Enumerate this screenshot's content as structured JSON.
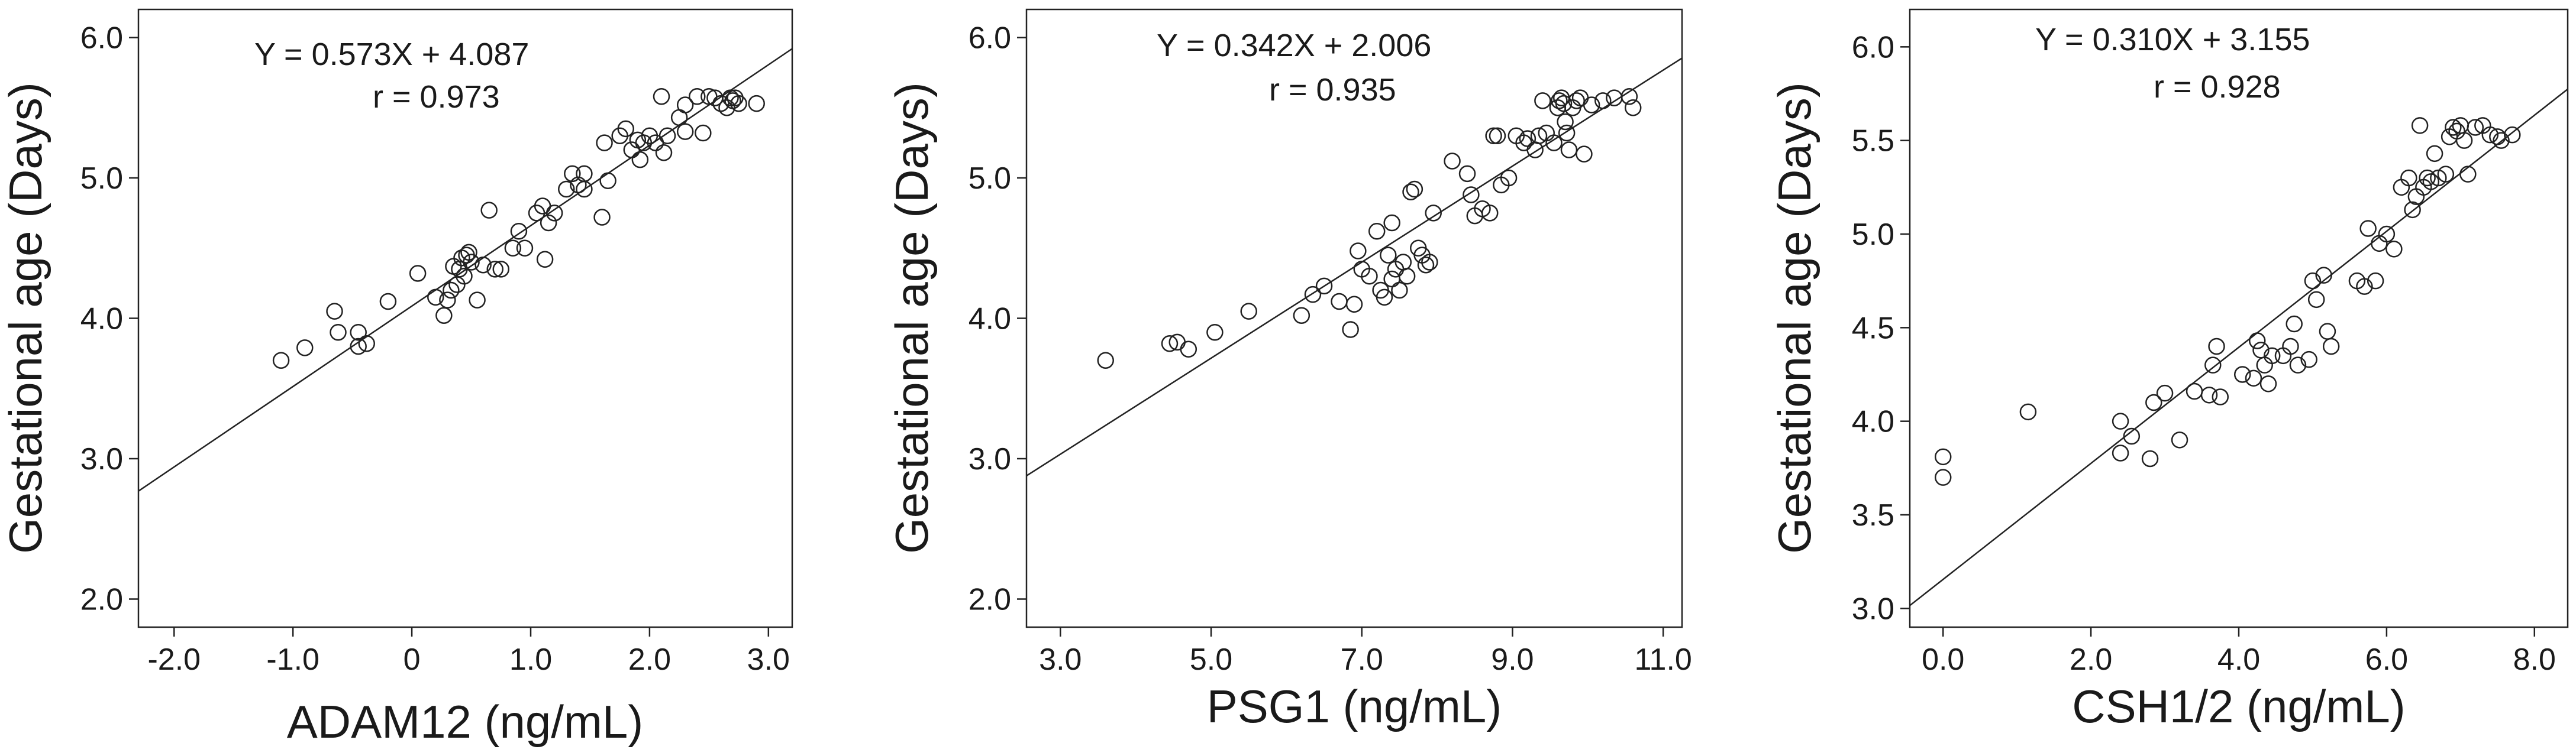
{
  "chart_data": [
    {
      "type": "scatter",
      "xlabel": "ADAM12 (ng/mL)",
      "ylabel": "Gestational age (Days)",
      "xlim": [
        -2.3,
        3.2
      ],
      "ylim": [
        1.8,
        6.2
      ],
      "xticks": [
        -2.0,
        -1.0,
        0,
        1.0,
        2.0,
        3.0
      ],
      "xtick_labels": [
        "-2.0",
        "-1.0",
        "0",
        "1.0",
        "2.0",
        "3.0"
      ],
      "yticks": [
        2.0,
        3.0,
        4.0,
        5.0,
        6.0
      ],
      "ytick_labels": [
        "2.0",
        "3.0",
        "4.0",
        "5.0",
        "6.0"
      ],
      "equation": "Y = 0.573X + 4.087",
      "r_label": "r = 0.973",
      "fit": {
        "slope": 0.573,
        "intercept": 4.087
      },
      "grid": false,
      "points": [
        [
          -1.1,
          3.7
        ],
        [
          -0.9,
          3.79
        ],
        [
          -0.65,
          4.05
        ],
        [
          -0.62,
          3.9
        ],
        [
          -0.45,
          3.9
        ],
        [
          -0.45,
          3.8
        ],
        [
          -0.38,
          3.82
        ],
        [
          -0.2,
          4.12
        ],
        [
          0.05,
          4.32
        ],
        [
          0.2,
          4.15
        ],
        [
          0.27,
          4.02
        ],
        [
          0.3,
          4.13
        ],
        [
          0.33,
          4.2
        ],
        [
          0.35,
          4.37
        ],
        [
          0.38,
          4.24
        ],
        [
          0.4,
          4.35
        ],
        [
          0.42,
          4.43
        ],
        [
          0.44,
          4.3
        ],
        [
          0.46,
          4.45
        ],
        [
          0.48,
          4.47
        ],
        [
          0.5,
          4.4
        ],
        [
          0.55,
          4.13
        ],
        [
          0.6,
          4.38
        ],
        [
          0.65,
          4.77
        ],
        [
          0.7,
          4.35
        ],
        [
          0.75,
          4.35
        ],
        [
          0.85,
          4.5
        ],
        [
          0.9,
          4.62
        ],
        [
          0.95,
          4.5
        ],
        [
          1.05,
          4.75
        ],
        [
          1.1,
          4.8
        ],
        [
          1.12,
          4.42
        ],
        [
          1.15,
          4.68
        ],
        [
          1.2,
          4.75
        ],
        [
          1.3,
          4.92
        ],
        [
          1.35,
          5.03
        ],
        [
          1.4,
          4.95
        ],
        [
          1.45,
          5.03
        ],
        [
          1.45,
          4.92
        ],
        [
          1.6,
          4.72
        ],
        [
          1.62,
          5.25
        ],
        [
          1.65,
          4.98
        ],
        [
          1.75,
          5.3
        ],
        [
          1.8,
          5.35
        ],
        [
          1.85,
          5.2
        ],
        [
          1.9,
          5.27
        ],
        [
          1.92,
          5.13
        ],
        [
          1.95,
          5.25
        ],
        [
          2.0,
          5.3
        ],
        [
          2.05,
          5.25
        ],
        [
          2.1,
          5.58
        ],
        [
          2.12,
          5.18
        ],
        [
          2.15,
          5.3
        ],
        [
          2.25,
          5.43
        ],
        [
          2.3,
          5.33
        ],
        [
          2.3,
          5.52
        ],
        [
          2.4,
          5.58
        ],
        [
          2.45,
          5.32
        ],
        [
          2.5,
          5.58
        ],
        [
          2.55,
          5.57
        ],
        [
          2.6,
          5.53
        ],
        [
          2.65,
          5.5
        ],
        [
          2.68,
          5.57
        ],
        [
          2.7,
          5.55
        ],
        [
          2.72,
          5.57
        ],
        [
          2.75,
          5.53
        ],
        [
          2.9,
          5.53
        ]
      ]
    },
    {
      "type": "scatter",
      "xlabel": "PSG1 (ng/mL)",
      "ylabel": "Gestational age (Days)",
      "xlim": [
        2.55,
        11.25
      ],
      "ylim": [
        1.8,
        6.2
      ],
      "xticks": [
        3.0,
        5.0,
        7.0,
        9.0,
        11.0
      ],
      "xtick_labels": [
        "3.0",
        "5.0",
        "7.0",
        "9.0",
        "11.0"
      ],
      "yticks": [
        2.0,
        3.0,
        4.0,
        5.0,
        6.0
      ],
      "ytick_labels": [
        "2.0",
        "3.0",
        "4.0",
        "5.0",
        "6.0"
      ],
      "equation": "Y = 0.342X + 2.006",
      "r_label": "r = 0.935",
      "fit": {
        "slope": 0.342,
        "intercept": 2.006
      },
      "grid": false,
      "points": [
        [
          3.6,
          3.7
        ],
        [
          4.45,
          3.82
        ],
        [
          4.55,
          3.83
        ],
        [
          4.7,
          3.78
        ],
        [
          5.05,
          3.9
        ],
        [
          5.5,
          4.05
        ],
        [
          6.2,
          4.02
        ],
        [
          6.35,
          4.17
        ],
        [
          6.5,
          4.23
        ],
        [
          6.7,
          4.12
        ],
        [
          6.85,
          3.92
        ],
        [
          6.9,
          4.1
        ],
        [
          6.95,
          4.48
        ],
        [
          7.0,
          4.35
        ],
        [
          7.1,
          4.3
        ],
        [
          7.2,
          4.62
        ],
        [
          7.25,
          4.2
        ],
        [
          7.3,
          4.15
        ],
        [
          7.35,
          4.45
        ],
        [
          7.4,
          4.68
        ],
        [
          7.4,
          4.28
        ],
        [
          7.45,
          4.35
        ],
        [
          7.5,
          4.2
        ],
        [
          7.55,
          4.4
        ],
        [
          7.6,
          4.3
        ],
        [
          7.65,
          4.9
        ],
        [
          7.7,
          4.92
        ],
        [
          7.75,
          4.5
        ],
        [
          7.8,
          4.45
        ],
        [
          7.85,
          4.38
        ],
        [
          7.9,
          4.4
        ],
        [
          7.95,
          4.75
        ],
        [
          8.2,
          5.12
        ],
        [
          8.4,
          5.03
        ],
        [
          8.45,
          4.88
        ],
        [
          8.5,
          4.73
        ],
        [
          8.6,
          4.78
        ],
        [
          8.7,
          4.75
        ],
        [
          8.75,
          5.3
        ],
        [
          8.8,
          5.3
        ],
        [
          8.85,
          4.95
        ],
        [
          8.95,
          5.0
        ],
        [
          9.05,
          5.3
        ],
        [
          9.15,
          5.25
        ],
        [
          9.2,
          5.28
        ],
        [
          9.3,
          5.2
        ],
        [
          9.35,
          5.3
        ],
        [
          9.4,
          5.55
        ],
        [
          9.45,
          5.32
        ],
        [
          9.55,
          5.25
        ],
        [
          9.6,
          5.5
        ],
        [
          9.62,
          5.55
        ],
        [
          9.65,
          5.57
        ],
        [
          9.68,
          5.53
        ],
        [
          9.7,
          5.4
        ],
        [
          9.72,
          5.32
        ],
        [
          9.75,
          5.2
        ],
        [
          9.8,
          5.5
        ],
        [
          9.85,
          5.55
        ],
        [
          9.9,
          5.57
        ],
        [
          9.95,
          5.17
        ],
        [
          10.05,
          5.52
        ],
        [
          10.2,
          5.55
        ],
        [
          10.35,
          5.57
        ],
        [
          10.55,
          5.58
        ],
        [
          10.6,
          5.5
        ]
      ]
    },
    {
      "type": "scatter",
      "xlabel": "CSH1/2 (ng/mL)",
      "ylabel": "Gestational age (Days)",
      "xlim": [
        -0.45,
        8.45
      ],
      "ylim": [
        2.9,
        6.2
      ],
      "xticks": [
        0.0,
        2.0,
        4.0,
        6.0,
        8.0
      ],
      "xtick_labels": [
        "0.0",
        "2.0",
        "4.0",
        "6.0",
        "8.0"
      ],
      "yticks": [
        3.0,
        3.5,
        4.0,
        4.5,
        5.0,
        5.5,
        6.0
      ],
      "ytick_labels": [
        "3.0",
        "3.5",
        "4.0",
        "4.5",
        "5.0",
        "5.5",
        "6.0"
      ],
      "equation": "Y = 0.310X + 3.155",
      "r_label": "r = 0.928",
      "fit": {
        "slope": 0.31,
        "intercept": 3.155
      },
      "grid": false,
      "points": [
        [
          0.0,
          3.81
        ],
        [
          0.0,
          3.7
        ],
        [
          1.15,
          4.05
        ],
        [
          2.4,
          4.0
        ],
        [
          2.4,
          3.83
        ],
        [
          2.55,
          3.92
        ],
        [
          2.8,
          3.8
        ],
        [
          2.85,
          4.1
        ],
        [
          3.0,
          4.15
        ],
        [
          3.2,
          3.9
        ],
        [
          3.4,
          4.16
        ],
        [
          3.6,
          4.14
        ],
        [
          3.65,
          4.3
        ],
        [
          3.7,
          4.4
        ],
        [
          3.75,
          4.13
        ],
        [
          4.05,
          4.25
        ],
        [
          4.2,
          4.23
        ],
        [
          4.25,
          4.43
        ],
        [
          4.3,
          4.38
        ],
        [
          4.35,
          4.3
        ],
        [
          4.4,
          4.2
        ],
        [
          4.45,
          4.35
        ],
        [
          4.6,
          4.35
        ],
        [
          4.7,
          4.4
        ],
        [
          4.75,
          4.52
        ],
        [
          4.8,
          4.3
        ],
        [
          4.95,
          4.33
        ],
        [
          5.0,
          4.75
        ],
        [
          5.05,
          4.65
        ],
        [
          5.15,
          4.78
        ],
        [
          5.2,
          4.48
        ],
        [
          5.25,
          4.4
        ],
        [
          5.6,
          4.75
        ],
        [
          5.7,
          4.72
        ],
        [
          5.75,
          5.03
        ],
        [
          5.85,
          4.75
        ],
        [
          5.9,
          4.95
        ],
        [
          6.0,
          5.0
        ],
        [
          6.1,
          4.92
        ],
        [
          6.2,
          5.25
        ],
        [
          6.3,
          5.3
        ],
        [
          6.35,
          5.13
        ],
        [
          6.4,
          5.2
        ],
        [
          6.45,
          5.58
        ],
        [
          6.5,
          5.25
        ],
        [
          6.55,
          5.3
        ],
        [
          6.6,
          5.28
        ],
        [
          6.65,
          5.43
        ],
        [
          6.7,
          5.3
        ],
        [
          6.8,
          5.32
        ],
        [
          6.85,
          5.52
        ],
        [
          6.9,
          5.57
        ],
        [
          6.95,
          5.55
        ],
        [
          7.0,
          5.58
        ],
        [
          7.05,
          5.5
        ],
        [
          7.1,
          5.32
        ],
        [
          7.2,
          5.57
        ],
        [
          7.3,
          5.58
        ],
        [
          7.4,
          5.53
        ],
        [
          7.5,
          5.52
        ],
        [
          7.55,
          5.5
        ],
        [
          7.7,
          5.53
        ]
      ]
    }
  ]
}
